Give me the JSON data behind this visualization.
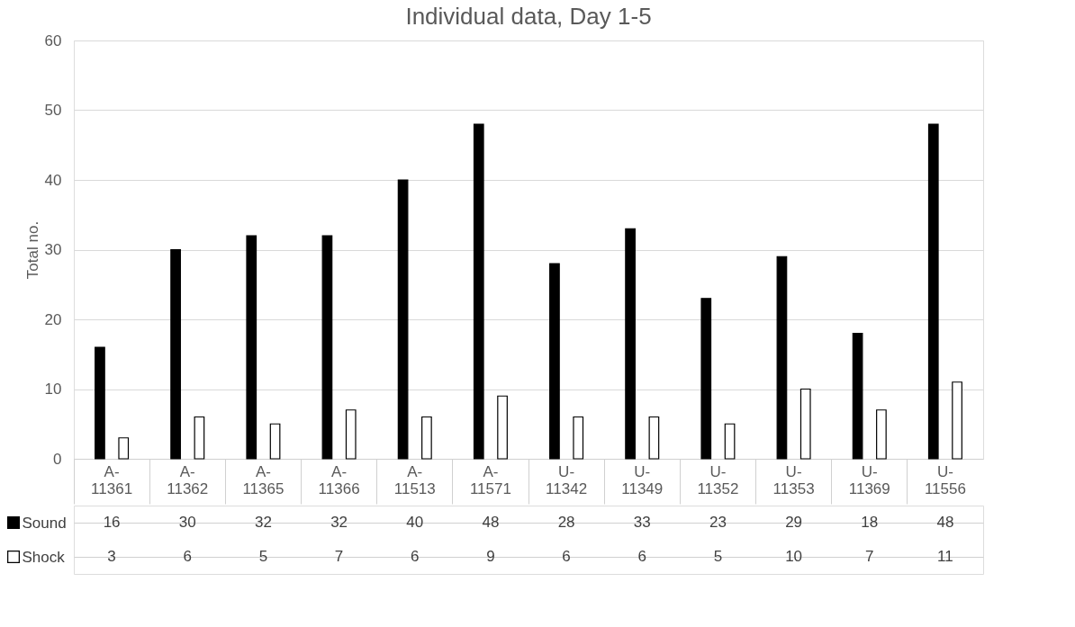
{
  "chart_data": {
    "type": "bar",
    "title": "Individual data, Day 1-5",
    "ylabel": "Total no.",
    "categories": [
      "A-11361",
      "A-11362",
      "A-11365",
      "A-11366",
      "A-11513",
      "A-11571",
      "U-11342",
      "U-11349",
      "U-11352",
      "U-11353",
      "U-11369",
      "U-11556"
    ],
    "series": [
      {
        "name": "Sound",
        "color": "#000000",
        "values": [
          16,
          30,
          32,
          32,
          40,
          48,
          28,
          33,
          23,
          29,
          18,
          48
        ]
      },
      {
        "name": "Shock",
        "color": "#ffffff",
        "values": [
          3,
          6,
          5,
          7,
          6,
          9,
          6,
          6,
          5,
          10,
          7,
          11
        ]
      }
    ],
    "ylim": [
      0,
      60
    ],
    "yticks": [
      0,
      10,
      20,
      30,
      40,
      50,
      60
    ],
    "grid": "y",
    "legend": "bottom",
    "data_labels": true
  }
}
